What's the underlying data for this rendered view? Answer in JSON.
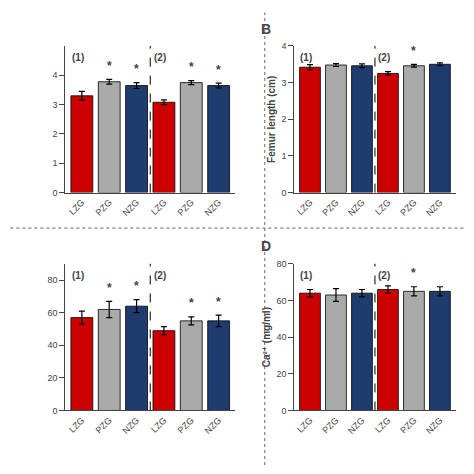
{
  "chart_data": [
    {
      "type": "bar",
      "categories": [
        "LZG",
        "PZG",
        "NZG",
        "LZG",
        "PZG",
        "NZG"
      ],
      "values": [
        3.3,
        3.78,
        3.65,
        3.08,
        3.75,
        3.65
      ],
      "errors": [
        0.15,
        0.08,
        0.1,
        0.08,
        0.07,
        0.08
      ],
      "colors": [
        "#cc0000",
        "#aaaaaa",
        "#1f3c6e",
        "#cc0000",
        "#aaaaaa",
        "#1f3c6e"
      ],
      "ylim": [
        0,
        5
      ],
      "yticks": [
        0,
        1,
        2,
        3,
        4
      ],
      "grid": false,
      "group_labels": [
        {
          "text": "(1)",
          "x": 0
        },
        {
          "text": "(2)",
          "x": 3
        }
      ],
      "annotations": [
        {
          "text": "*",
          "x": 1
        },
        {
          "text": "*",
          "x": 2
        },
        {
          "text": "*",
          "x": 4
        },
        {
          "text": "*",
          "x": 5
        }
      ]
    },
    {
      "type": "bar",
      "title": "B",
      "ylabel": "Femur length (cm)",
      "categories": [
        "LZG",
        "PZG",
        "NZG",
        "LZG",
        "PZG",
        "NZG"
      ],
      "values": [
        3.42,
        3.48,
        3.46,
        3.25,
        3.46,
        3.5
      ],
      "errors": [
        0.07,
        0.04,
        0.05,
        0.05,
        0.04,
        0.04
      ],
      "colors": [
        "#cc0000",
        "#aaaaaa",
        "#1f3c6e",
        "#cc0000",
        "#aaaaaa",
        "#1f3c6e"
      ],
      "ylim": [
        0,
        4
      ],
      "yticks": [
        0,
        1,
        2,
        3,
        4
      ],
      "grid": false,
      "group_labels": [
        {
          "text": "(1)",
          "x": 0
        },
        {
          "text": "(2)",
          "x": 3
        }
      ],
      "annotations": [
        {
          "text": "*",
          "x": 4
        }
      ]
    },
    {
      "type": "bar",
      "categories": [
        "LZG",
        "PZG",
        "NZG",
        "LZG",
        "PZG",
        "NZG"
      ],
      "values": [
        57,
        62,
        64,
        49,
        55,
        55
      ],
      "errors": [
        4.0,
        5.0,
        4.0,
        2.5,
        2.5,
        3.5
      ],
      "colors": [
        "#cc0000",
        "#aaaaaa",
        "#1f3c6e",
        "#cc0000",
        "#aaaaaa",
        "#1f3c6e"
      ],
      "ylim": [
        0,
        90
      ],
      "yticks": [
        0,
        20,
        40,
        60,
        80
      ],
      "grid": false,
      "group_labels": [
        {
          "text": "(1)",
          "x": 0
        },
        {
          "text": "(2)",
          "x": 3
        }
      ],
      "annotations": [
        {
          "text": "*",
          "x": 1
        },
        {
          "text": "*",
          "x": 2
        },
        {
          "text": "*",
          "x": 4
        },
        {
          "text": "*",
          "x": 5
        }
      ]
    },
    {
      "type": "bar",
      "title": "D",
      "ylabel": "Ca²⁺ (mg/ml)",
      "categories": [
        "LZG",
        "PZG",
        "NZG",
        "LZG",
        "PZG",
        "NZG"
      ],
      "values": [
        64,
        63,
        64,
        66,
        65,
        65
      ],
      "errors": [
        2.0,
        3.5,
        2.0,
        2.0,
        2.5,
        2.5
      ],
      "colors": [
        "#cc0000",
        "#aaaaaa",
        "#1f3c6e",
        "#cc0000",
        "#aaaaaa",
        "#1f3c6e"
      ],
      "ylim": [
        0,
        80
      ],
      "yticks": [
        0,
        20,
        40,
        60,
        80
      ],
      "grid": false,
      "group_labels": [
        {
          "text": "(1)",
          "x": 0
        },
        {
          "text": "(2)",
          "x": 3
        }
      ],
      "annotations": [
        {
          "text": "*",
          "x": 4
        }
      ]
    }
  ]
}
